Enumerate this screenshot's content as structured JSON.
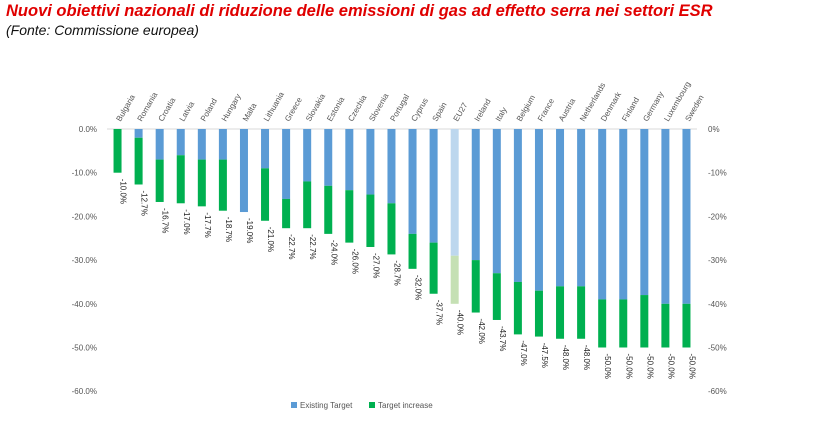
{
  "header": {
    "title": "Nuovi obiettivi nazionali di riduzione delle emissioni di gas ad effetto serra nei settori ESR",
    "subtitle": "(Fonte: Commissione europea)"
  },
  "chart_data": {
    "type": "bar",
    "stacked": true,
    "categories": [
      "Bulgaria",
      "Romania",
      "Croatia",
      "Latvia",
      "Poland",
      "Hungary",
      "Malta",
      "Lithuania",
      "Greece",
      "Slovakia",
      "Estonia",
      "Czechia",
      "Slovenia",
      "Portugal",
      "Cyprus",
      "Spain",
      "EU27",
      "Ireland",
      "Italy",
      "Belgium",
      "France",
      "Austria",
      "Netherlands",
      "Denmark",
      "Finland",
      "Germany",
      "Luxembourg",
      "Sweden"
    ],
    "series": [
      {
        "name": "Existing Target",
        "values": [
          0,
          -2,
          -7,
          -6,
          -7,
          -7,
          -19,
          -9,
          -16,
          -12,
          -13,
          -14,
          -15,
          -17,
          -24,
          -26,
          -29,
          -30,
          -33,
          -35,
          -37,
          -36,
          -36,
          -39,
          -39,
          -38,
          -40,
          -40
        ]
      },
      {
        "name": "Target increase",
        "values": [
          -10,
          -10.7,
          -9.7,
          -11,
          -10.7,
          -11.7,
          0,
          -12,
          -6.7,
          -10.7,
          -11,
          -12,
          -12,
          -11.7,
          -8,
          -11.7,
          -11,
          -12,
          -10.7,
          -12,
          -10.5,
          -12,
          -12,
          -11,
          -11,
          -12,
          -10,
          -10
        ]
      }
    ],
    "data_labels": [
      "-10.0%",
      "-12.7%",
      "-16.7%",
      "-17.0%",
      "-17.7%",
      "-18.7%",
      "-19.0%",
      "-21.0%",
      "-22.7%",
      "-22.7%",
      "-24.0%",
      "-26.0%",
      "-27.0%",
      "-28.7%",
      "-32.0%",
      "-37.7%",
      "-40.0%",
      "-42.0%",
      "-43.7%",
      "-47.0%",
      "-47.5%",
      "-48.0%",
      "-48.0%",
      "-50.0%",
      "-50.0%",
      "-50.0%",
      "-50.0%",
      "-50.0%"
    ],
    "highlight_category": "EU27",
    "ylim": [
      -60,
      0
    ],
    "yticks": [
      0,
      -10,
      -20,
      -30,
      -40,
      -50,
      -60
    ],
    "ytick_labels": [
      "0.0%",
      "-10.0%",
      "-20.0%",
      "-30.0%",
      "-40.0%",
      "-50.0%",
      "-60.0%"
    ],
    "ytick_labels_right": [
      "0%",
      "-10%",
      "-20%",
      "-30%",
      "-40%",
      "-50%",
      "-60%"
    ],
    "grid": false,
    "legend_position": "bottom",
    "colors": {
      "existing": "#5b9bd5",
      "increase": "#00b050",
      "existing_highlight": "#bdd7ee",
      "increase_highlight": "#c5e0b4"
    }
  }
}
